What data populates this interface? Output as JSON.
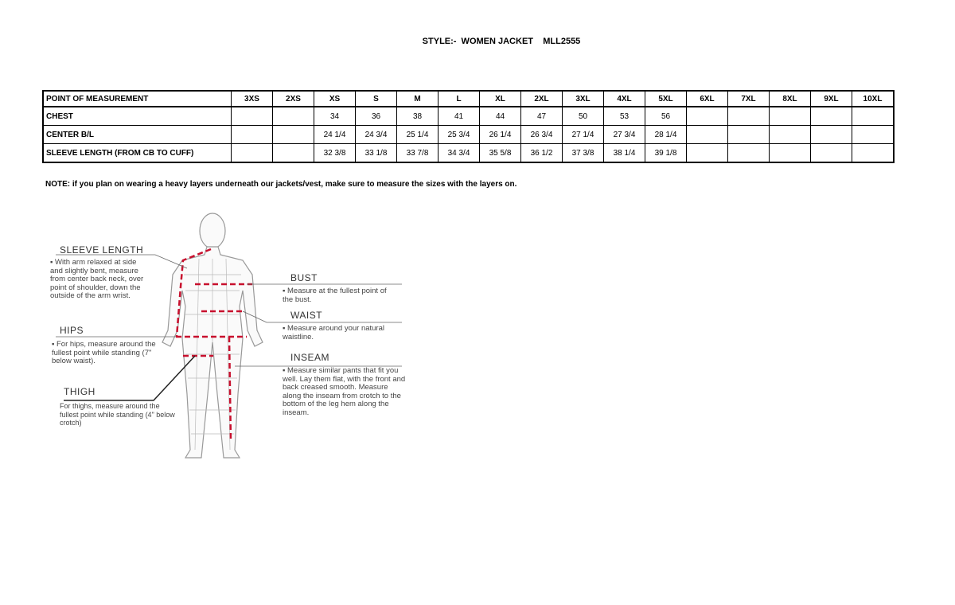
{
  "title": "STYLE:-  WOMEN JACKET    MLL2555",
  "table": {
    "headers": [
      "POINT OF MEASUREMENT",
      "3XS",
      "2XS",
      "XS",
      "S",
      "M",
      "L",
      "XL",
      "2XL",
      "3XL",
      "4XL",
      "5XL",
      "6XL",
      "7XL",
      "8XL",
      "9XL",
      "10XL"
    ],
    "rows": [
      [
        "CHEST",
        "",
        "",
        "34",
        "36",
        "38",
        "41",
        "44",
        "47",
        "50",
        "53",
        "56",
        "",
        "",
        "",
        "",
        ""
      ],
      [
        "CENTER B/L",
        "",
        "",
        "24 1/4",
        "24 3/4",
        "25 1/4",
        "25 3/4",
        "26 1/4",
        "26 3/4",
        "27 1/4",
        "27 3/4",
        "28 1/4",
        "",
        "",
        "",
        "",
        ""
      ],
      [
        "SLEEVE LENGTH (FROM CB TO CUFF)",
        "",
        "",
        "32 3/8",
        "33 1/8",
        "33 7/8",
        "34 3/4",
        "35 5/8",
        "36 1/2",
        "37 3/8",
        "38 1/4",
        "39 1/8",
        "",
        "",
        "",
        "",
        ""
      ]
    ]
  },
  "note": "NOTE: if you plan on wearing a heavy layers underneath our jackets/vest, make sure to measure the sizes with the layers on.",
  "figure": {
    "sleeve_label": "SLEEVE LENGTH",
    "sleeve_text": "▪ With arm relaxed at side and slightly bent, measure from center back neck, over point of shoulder, down the outside of the arm wrist.",
    "hips_label": "HIPS",
    "hips_text": "▪ For hips, measure around the fullest point while standing (7\" below waist).",
    "thigh_label": "THIGH",
    "thigh_text": "For thighs, measure around the fullest point while standing (4\" below crotch)",
    "bust_label": "BUST",
    "bust_text": "▪ Measure at the fullest point of the bust.",
    "waist_label": "WAIST",
    "waist_text": "▪ Measure around your natural waistline.",
    "inseam_label": "INSEAM",
    "inseam_text": "▪ Measure similar pants that fit you well. Lay them flat, with the front and back creased smooth. Measure along the inseam from crotch to the bottom of the leg hem along the inseam.",
    "dash_color": "#c8102e"
  }
}
